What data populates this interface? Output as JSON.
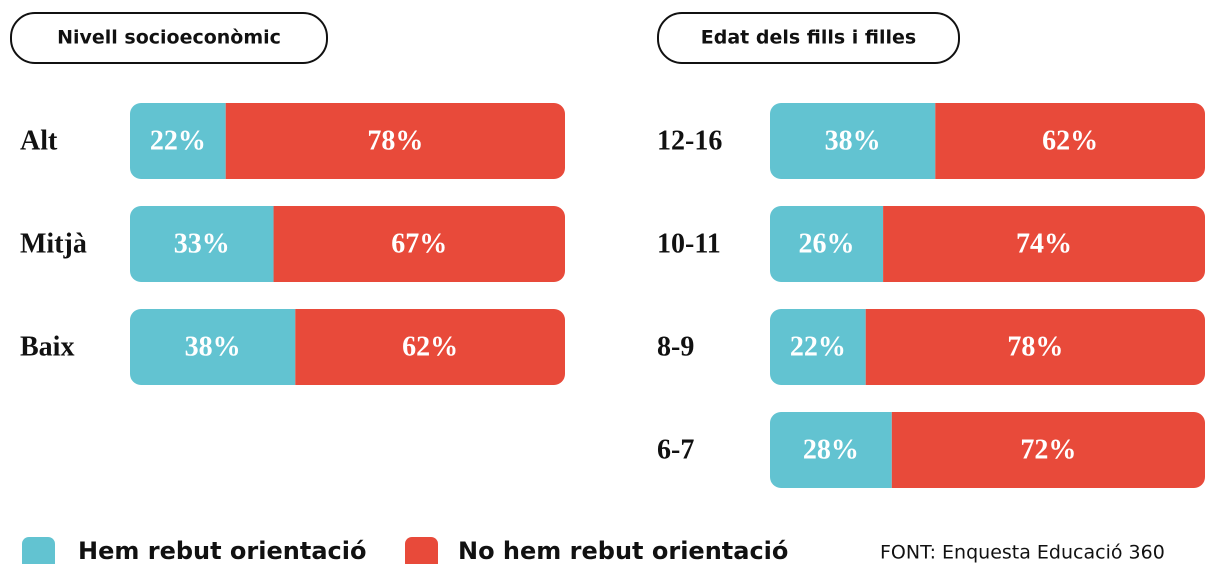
{
  "chart_data": [
    {
      "type": "stacked_bar_horizontal",
      "title": "Nivell socioeconòmic",
      "categories": [
        "Alt",
        "Mitjà",
        "Baix"
      ],
      "series": [
        {
          "name": "Hem rebut orientació",
          "color": "#62c3d1",
          "values": [
            22,
            33,
            38
          ],
          "value_labels": [
            "22%",
            "33%",
            "38%"
          ]
        },
        {
          "name": "No hem rebut orientació",
          "color": "#e84a3a",
          "values": [
            78,
            67,
            62
          ],
          "value_labels": [
            "78%",
            "67%",
            "62%"
          ]
        }
      ],
      "xlim": [
        0,
        100
      ]
    },
    {
      "type": "stacked_bar_horizontal",
      "title": "Edat dels fills i filles",
      "categories": [
        "12-16",
        "10-11",
        "8-9",
        "6-7"
      ],
      "series": [
        {
          "color": "#62c3d1",
          "values": [
            38,
            26,
            22,
            28
          ],
          "value_labels": [
            "38%",
            "26%",
            "22%",
            "28%"
          ]
        },
        {
          "color": "#e84a3a",
          "values": [
            62,
            74,
            78,
            72
          ],
          "value_labels": [
            "62%",
            "74%",
            "78%",
            "72%"
          ]
        }
      ],
      "xlim": [
        0,
        100
      ]
    }
  ],
  "source": "FONT: Enquesta Educació 360"
}
